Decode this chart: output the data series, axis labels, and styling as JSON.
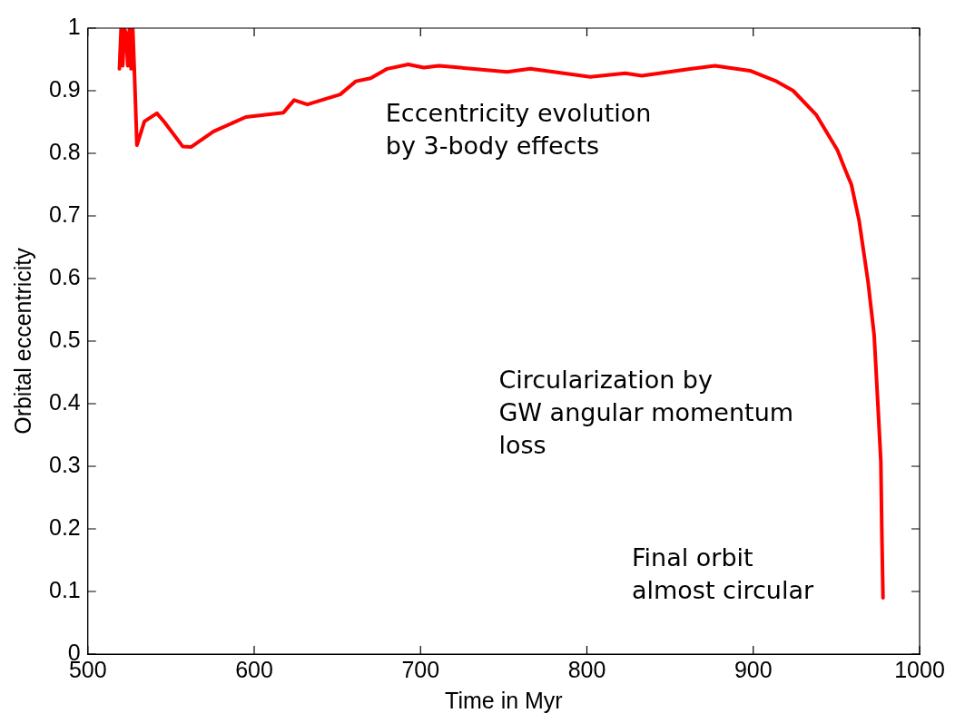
{
  "chart_data": {
    "type": "line",
    "xlabel": "Time in Myr",
    "ylabel": "Orbital eccentricity",
    "xlim": [
      500,
      1000
    ],
    "xticks": [
      500,
      600,
      700,
      800,
      900,
      1000
    ],
    "ylim": [
      0,
      1
    ],
    "yticks": [
      0,
      0.1,
      0.2,
      0.3,
      0.4,
      0.5,
      0.6,
      0.7,
      0.8,
      0.9,
      1
    ],
    "grid": false,
    "legend": false,
    "marker": "none",
    "line_style": "solid",
    "annotations": [
      "Eccentricity evolution\nby 3-body effects",
      "Circularization by\nGW angular momentum\nloss",
      "Final orbit\nalmost circular"
    ],
    "series": [
      {
        "color": "#ff0000",
        "x": [
          519,
          520,
          521,
          522,
          523,
          524,
          525,
          526,
          527,
          528,
          529.5,
          534,
          541.5,
          546,
          557,
          562,
          575.6,
          595,
          617.6,
          624,
          632,
          651.7,
          661,
          670,
          680,
          692.6,
          702,
          711,
          752,
          766,
          802,
          823,
          833,
          863,
          877,
          898,
          914,
          924,
          938,
          950.6,
          955.7,
          959,
          963.6,
          969,
          972.7,
          975,
          976.7,
          977.3,
          978
        ],
        "values": [
          0.935,
          1,
          0.94,
          1,
          0.99,
          0.94,
          1,
          0.935,
          1,
          0.93,
          0.813,
          0.851,
          0.864,
          0.85,
          0.811,
          0.81,
          0.835,
          0.858,
          0.865,
          0.885,
          0.878,
          0.894,
          0.915,
          0.92,
          0.935,
          0.942,
          0.937,
          0.94,
          0.93,
          0.935,
          0.922,
          0.928,
          0.924,
          0.935,
          0.94,
          0.932,
          0.915,
          0.9,
          0.861,
          0.805,
          0.771,
          0.75,
          0.693,
          0.595,
          0.509,
          0.395,
          0.308,
          0.194,
          0.09
        ]
      }
    ]
  }
}
